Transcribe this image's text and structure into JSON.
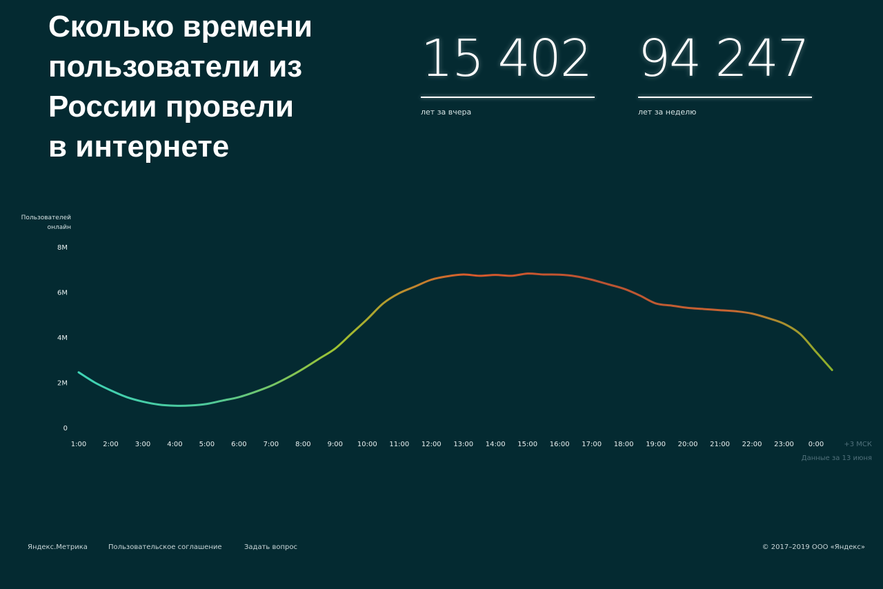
{
  "headline": {
    "lines": [
      "Сколько времени",
      "пользователи из",
      "России провели",
      "в интернете"
    ]
  },
  "stats": {
    "yesterday": {
      "value": "15 402",
      "caption": "лет за вчера"
    },
    "week": {
      "value": "94 247",
      "caption": "лет за неделю"
    }
  },
  "chart_data": {
    "type": "line",
    "ylabel": [
      "Пользователей",
      "онлайн"
    ],
    "y_ticks": [
      "0",
      "2M",
      "4M",
      "6M",
      "8M"
    ],
    "y_tick_values": [
      0,
      2,
      4,
      6,
      8
    ],
    "ylim": [
      0,
      8
    ],
    "x_ticks": [
      "1:00",
      "2:00",
      "3:00",
      "4:00",
      "5:00",
      "6:00",
      "7:00",
      "8:00",
      "9:00",
      "10:00",
      "11:00",
      "12:00",
      "13:00",
      "14:00",
      "15:00",
      "16:00",
      "17:00",
      "18:00",
      "19:00",
      "20:00",
      "21:00",
      "22:00",
      "23:00",
      "0:00"
    ],
    "timezone_label": "+3 МСК",
    "date_note": "Данные за 13 июня",
    "grid": false,
    "gradient_colors": [
      "#3fd3b5",
      "#4ec89a",
      "#9ec230",
      "#d85a2c",
      "#b85232",
      "#c86432",
      "#7ec62a"
    ],
    "x_hours": [
      0,
      0.5,
      1,
      1.5,
      2,
      2.5,
      3,
      3.5,
      4,
      4.5,
      5,
      5.5,
      6,
      6.5,
      7,
      7.5,
      8,
      8.5,
      9,
      9.5,
      10,
      10.5,
      11,
      11.5,
      12,
      12.5,
      13,
      13.5,
      14,
      14.5,
      15,
      15.5,
      16,
      16.5,
      17,
      17.5,
      18,
      18.5,
      19,
      19.5,
      20,
      20.5,
      21,
      21.5,
      22,
      22.5,
      23,
      23.5
    ],
    "values": [
      2.45,
      2.0,
      1.65,
      1.35,
      1.15,
      1.02,
      0.97,
      0.98,
      1.05,
      1.2,
      1.35,
      1.58,
      1.85,
      2.2,
      2.6,
      3.05,
      3.5,
      4.15,
      4.8,
      5.5,
      5.95,
      6.25,
      6.55,
      6.7,
      6.78,
      6.72,
      6.76,
      6.72,
      6.82,
      6.78,
      6.77,
      6.7,
      6.55,
      6.35,
      6.15,
      5.85,
      5.5,
      5.4,
      5.3,
      5.25,
      5.2,
      5.15,
      5.05,
      4.85,
      4.6,
      4.15,
      3.35,
      2.55
    ]
  },
  "footer": {
    "links": [
      "Яндекс.Метрика",
      "Пользовательское соглашение",
      "Задать вопрос"
    ],
    "copyright": "© 2017–2019 ООО «Яндекс»"
  }
}
